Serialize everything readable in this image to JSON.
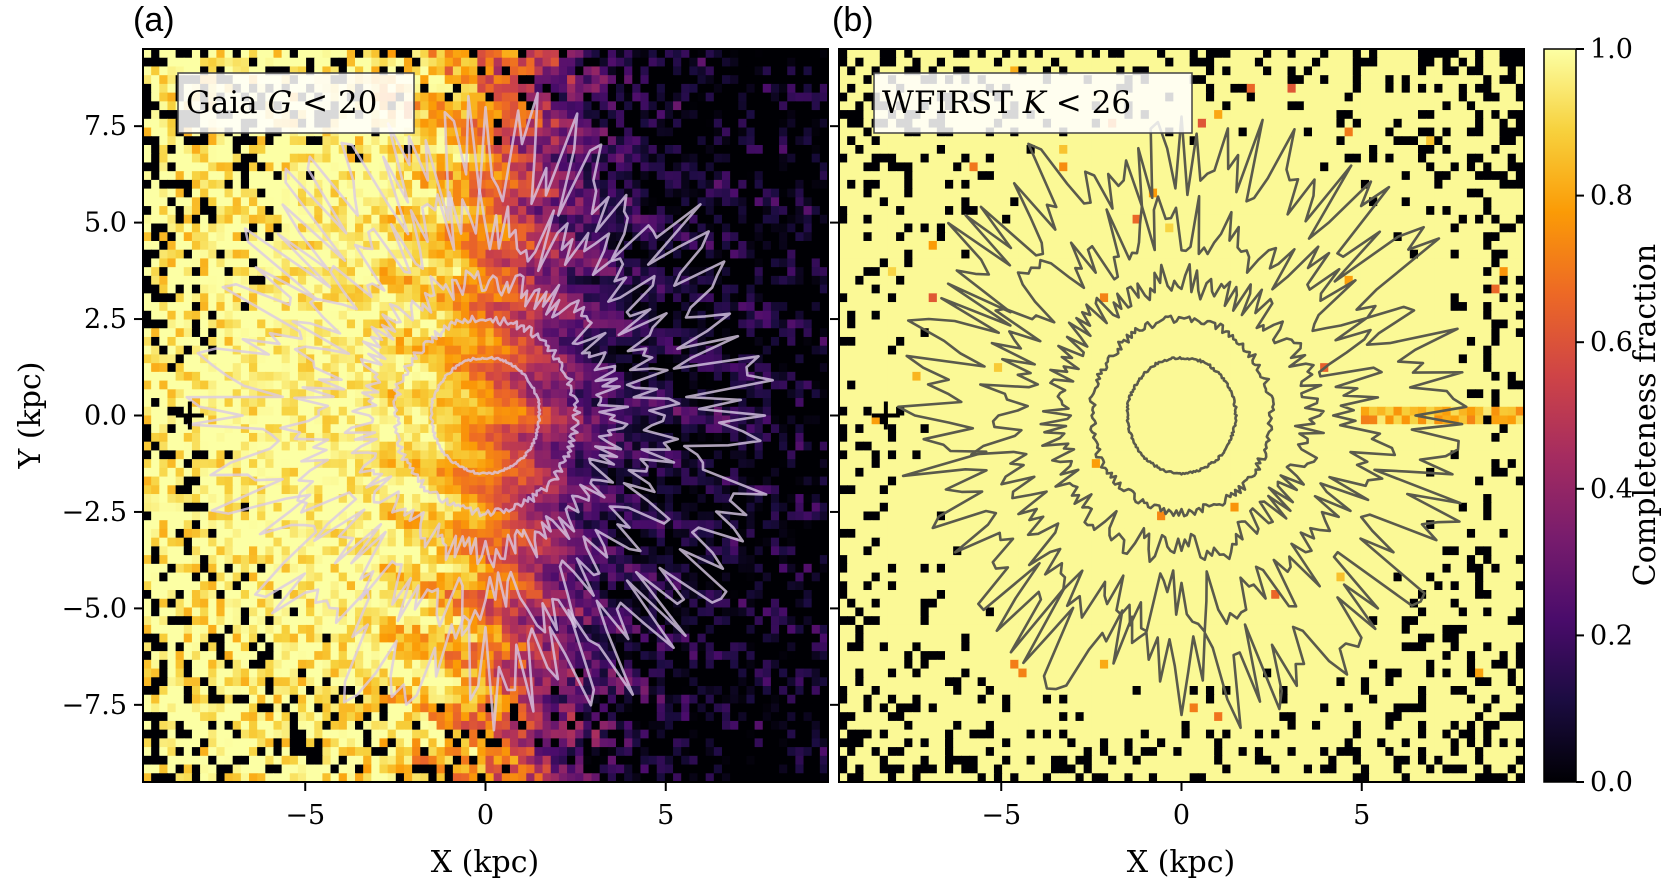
{
  "colors": {
    "colormap": "inferno",
    "cmap_stops": [
      "#000004",
      "#1b0c41",
      "#4a0c6b",
      "#781c6d",
      "#a52c60",
      "#cf4446",
      "#ed6925",
      "#fb9b06",
      "#f7d13d",
      "#fcffa4"
    ],
    "contour_light": "#d9c9e6",
    "contour_dark": "#5a5a4c",
    "marker": "#000000"
  },
  "chart_data": [
    {
      "type": "heatmap",
      "panel": "(a)",
      "label": "Gaia G < 20",
      "label_parts": {
        "pre": "Gaia ",
        "var": "G",
        "op": " < ",
        "num": "20"
      },
      "xlabel": "X (kpc)",
      "ylabel": "Y (kpc)",
      "xlim": [
        -9.5,
        9.5
      ],
      "ylim": [
        -9.5,
        9.5
      ],
      "xticks": [
        -5,
        0,
        5
      ],
      "xtick_labels": [
        "−5",
        "0",
        "5"
      ],
      "yticks": [
        7.5,
        5.0,
        2.5,
        0.0,
        -2.5,
        -5.0,
        -7.5
      ],
      "ytick_labels": [
        "7.5",
        "5.0",
        "2.5",
        "0.0",
        "−2.5",
        "−5.0",
        "−7.5"
      ],
      "marker": {
        "symbol": "+",
        "x": -8.2,
        "y": 0.0
      },
      "contour_radii_kpc": [
        1.5,
        2.5,
        3.5,
        5.0,
        6.8
      ],
      "completeness_model": "high (~1.0) at X < -5 kpc decreasing to ~0.0 at X > 7 kpc; mid-plane streak near Y = 0"
    },
    {
      "type": "heatmap",
      "panel": "(b)",
      "label": "WFIRST K < 26",
      "label_parts": {
        "pre": "WFIRST ",
        "var": "K",
        "op": " < ",
        "num": "26"
      },
      "xlabel": "X (kpc)",
      "xlim": [
        -9.5,
        9.5
      ],
      "ylim": [
        -9.5,
        9.5
      ],
      "xticks": [
        -5,
        0,
        5
      ],
      "xtick_labels": [
        "−5",
        "0",
        "5"
      ],
      "yticks": [
        7.5,
        5.0,
        2.5,
        0.0,
        -2.5,
        -5.0,
        -7.5
      ],
      "marker": {
        "symbol": "+",
        "x": -8.2,
        "y": 0.0
      },
      "contour_radii_kpc": [
        1.5,
        2.5,
        3.5,
        5.0,
        6.8
      ],
      "completeness_model": "~1.0 nearly everywhere; a few reduced bins along Y = 0 at X > 5 kpc"
    }
  ],
  "colorbar": {
    "label": "Completeness fraction",
    "range": [
      0.0,
      1.0
    ],
    "ticks": [
      1.0,
      0.8,
      0.6,
      0.4,
      0.2,
      0.0
    ],
    "tick_labels": [
      "1.0",
      "0.8",
      "0.6",
      "0.4",
      "0.2",
      "0.0"
    ]
  }
}
